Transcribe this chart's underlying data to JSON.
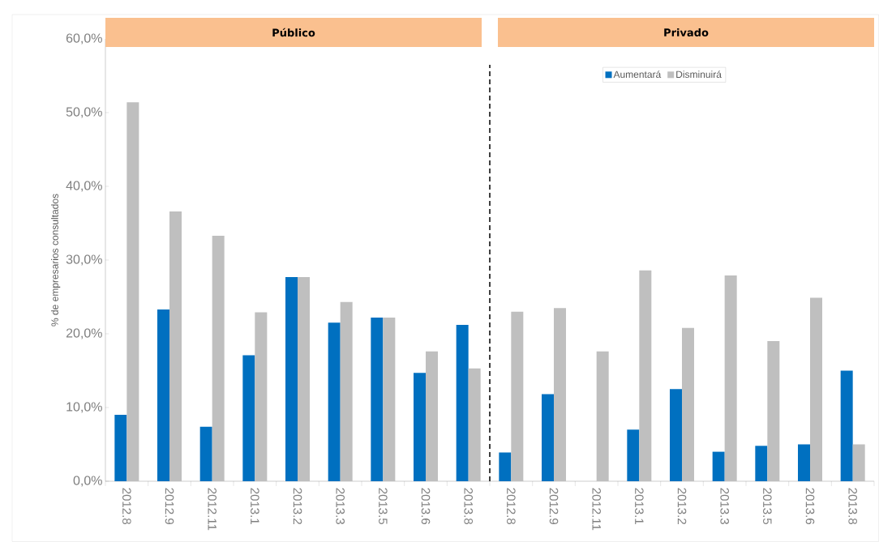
{
  "chart_data": {
    "type": "bar",
    "ylabel": "% de empresarios consultados",
    "annotations": [
      "Público",
      "Privado"
    ],
    "categories": [
      "2012.8",
      "2012.9",
      "2012.11",
      "2013.1",
      "2013.2",
      "2013.3",
      "2013.5",
      "2013.6",
      "2013.8",
      "2012.8",
      "2012.9",
      "2012.11",
      "2013.1",
      "2013.2",
      "2013.3",
      "2013.5",
      "2013.6",
      "2013.8"
    ],
    "series": [
      {
        "name": "Aumentará",
        "color": "#0070c0",
        "values": [
          9.0,
          23.3,
          7.4,
          17.1,
          27.7,
          21.5,
          22.2,
          14.7,
          21.2,
          3.9,
          11.8,
          0,
          7.0,
          12.5,
          4.0,
          4.8,
          5.0,
          15.0
        ]
      },
      {
        "name": "Disminuirá",
        "color": "#bfbfbf",
        "values": [
          51.4,
          36.6,
          33.3,
          22.9,
          27.7,
          24.3,
          22.2,
          17.6,
          15.3,
          23.0,
          23.5,
          17.6,
          28.6,
          20.8,
          27.9,
          19.0,
          24.9,
          5.0
        ]
      }
    ],
    "ylim": [
      0,
      60
    ],
    "yticks": [
      {
        "value": 0,
        "label": "0,0%"
      },
      {
        "value": 10,
        "label": "10,0%"
      },
      {
        "value": 20,
        "label": "20,0%"
      },
      {
        "value": 30,
        "label": "30,0%"
      },
      {
        "value": 40,
        "label": "40,0%"
      },
      {
        "value": 50,
        "label": "50,0%"
      },
      {
        "value": 60,
        "label": "60,0%"
      }
    ],
    "legend": "top"
  }
}
